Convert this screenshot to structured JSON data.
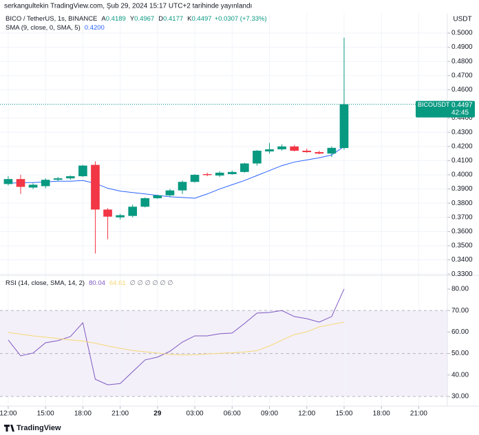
{
  "header": {
    "publisher": "serkangultekin TradingView.com, Şub 29, 2024 15:17 UTC+2 tarihinde yayınlandı"
  },
  "chart_data": [
    {
      "type": "candlestick",
      "title": "BICO / TetherUS, 1s, BINANCE",
      "legend": [
        {
          "label": "A",
          "path": "open"
        },
        {
          "label": "Y",
          "path": "high"
        },
        {
          "label": "D",
          "path": "low"
        },
        {
          "label": "K",
          "path": "close"
        }
      ],
      "change": "+0.0307 (+7.33%)",
      "y_axis_label": "USDT",
      "x": [
        0,
        1,
        2,
        3,
        4,
        5,
        6,
        7,
        8,
        9,
        10,
        11,
        12,
        13,
        14,
        15,
        16,
        17,
        18,
        19,
        20,
        21,
        22,
        23,
        24,
        25,
        26,
        27
      ],
      "xlim": [
        -0.66,
        35.3
      ],
      "xticks": [
        {
          "value": 0,
          "label": "12:00"
        },
        {
          "value": 3,
          "label": "15:00"
        },
        {
          "value": 6,
          "label": "18:00"
        },
        {
          "value": 9,
          "label": "21:00"
        },
        {
          "value": 12,
          "label": "29"
        },
        {
          "value": 15,
          "label": "03:00"
        },
        {
          "value": 18,
          "label": "06:00"
        },
        {
          "value": 21,
          "label": "09:00"
        },
        {
          "value": 24,
          "label": "12:00"
        },
        {
          "value": 27,
          "label": "15:00"
        },
        {
          "value": 30,
          "label": "18:00"
        },
        {
          "value": 33,
          "label": "21:00"
        }
      ],
      "ylim": [
        0.3291,
        0.5136
      ],
      "yticks": [
        {
          "value": 0.33,
          "label": "0.3300"
        },
        {
          "value": 0.34,
          "label": "0.3400"
        },
        {
          "value": 0.35,
          "label": "0.3500"
        },
        {
          "value": 0.36,
          "label": "0.3600"
        },
        {
          "value": 0.37,
          "label": "0.3700"
        },
        {
          "value": 0.38,
          "label": "0.3800"
        },
        {
          "value": 0.39,
          "label": "0.3900"
        },
        {
          "value": 0.4,
          "label": "0.4000"
        },
        {
          "value": 0.41,
          "label": "0.4100"
        },
        {
          "value": 0.42,
          "label": "0.4200"
        },
        {
          "value": 0.43,
          "label": "0.4300"
        },
        {
          "value": 0.44,
          "label": "0.4400"
        },
        {
          "value": 0.45,
          "label": "0.4500"
        },
        {
          "value": 0.46,
          "label": "0.4600"
        },
        {
          "value": 0.47,
          "label": "0.4700"
        },
        {
          "value": 0.48,
          "label": "0.4800"
        },
        {
          "value": 0.49,
          "label": "0.4900"
        },
        {
          "value": 0.5,
          "label": "0.5000"
        }
      ],
      "grid": true,
      "series": [
        {
          "up_color": "#089981",
          "down_color": "#f23645",
          "open": [
            0.3935,
            0.397,
            0.391,
            0.392,
            0.3965,
            0.3975,
            0.399,
            0.407,
            0.3755,
            0.37,
            0.371,
            0.3775,
            0.3835,
            0.3855,
            0.389,
            0.395,
            0.4005,
            0.3995,
            0.4005,
            0.402,
            0.408,
            0.4165,
            0.418,
            0.42,
            0.417,
            0.416,
            0.415,
            0.4189
          ],
          "high": [
            0.399,
            0.4,
            0.394,
            0.3975,
            0.3985,
            0.3995,
            0.407,
            0.4095,
            0.3765,
            0.3725,
            0.379,
            0.384,
            0.386,
            0.39,
            0.396,
            0.4005,
            0.4015,
            0.4025,
            0.403,
            0.4085,
            0.4175,
            0.4225,
            0.4215,
            0.421,
            0.4185,
            0.417,
            0.42,
            0.4967
          ],
          "low": [
            0.3925,
            0.3865,
            0.39,
            0.3905,
            0.3955,
            0.3965,
            0.3985,
            0.3445,
            0.3545,
            0.3685,
            0.37,
            0.377,
            0.383,
            0.3845,
            0.3865,
            0.3945,
            0.399,
            0.3985,
            0.4,
            0.4015,
            0.4065,
            0.415,
            0.417,
            0.4165,
            0.4155,
            0.4145,
            0.4125,
            0.4177
          ],
          "close": [
            0.397,
            0.3915,
            0.393,
            0.3965,
            0.3975,
            0.399,
            0.4065,
            0.3755,
            0.3705,
            0.3715,
            0.3775,
            0.3835,
            0.3855,
            0.389,
            0.395,
            0.4,
            0.3998,
            0.4015,
            0.402,
            0.408,
            0.417,
            0.418,
            0.42,
            0.417,
            0.416,
            0.415,
            0.419,
            0.4497
          ]
        }
      ],
      "overlays": [
        {
          "name": "SMA (9, close, 0, SMA, 5)",
          "last_label": "0.4200",
          "color": "#2962ff",
          "values": [
            0.394,
            0.3945,
            0.3945,
            0.395,
            0.3955,
            0.3955,
            0.396,
            0.394,
            0.3905,
            0.3885,
            0.3875,
            0.3865,
            0.3855,
            0.3845,
            0.384,
            0.3835,
            0.3865,
            0.39,
            0.393,
            0.396,
            0.3995,
            0.403,
            0.4065,
            0.409,
            0.4105,
            0.412,
            0.414,
            0.42
          ]
        }
      ],
      "last_price": {
        "label": "BICOUSDT",
        "countdown": "42:45",
        "color": "#089981"
      }
    },
    {
      "type": "line",
      "title": "RSI (14, close, SMA, 14, 2)",
      "extra": "∅ ∅ ∅ ∅ ∅ ∅",
      "x": [
        0,
        1,
        2,
        3,
        4,
        5,
        6,
        7,
        8,
        9,
        10,
        11,
        12,
        13,
        14,
        15,
        16,
        17,
        18,
        19,
        20,
        21,
        22,
        23,
        24,
        25,
        26,
        27
      ],
      "xlim": [
        -0.66,
        35.3
      ],
      "ylim": [
        25.5,
        86.4
      ],
      "yticks": [
        {
          "value": 30,
          "label": "30.00"
        },
        {
          "value": 40,
          "label": "40.00"
        },
        {
          "value": 50,
          "label": "50.00"
        },
        {
          "value": 60,
          "label": "60.00"
        },
        {
          "value": 70,
          "label": "70.00"
        },
        {
          "value": 80,
          "label": "80.00"
        }
      ],
      "bands": [
        70,
        50,
        30
      ],
      "band_color": "#7e57c2",
      "series": [
        {
          "color": "#7e57c2",
          "values": [
            56.3,
            48.9,
            50.2,
            55.0,
            56.0,
            57.9,
            64.3,
            38.0,
            35.4,
            36.0,
            41.5,
            47.0,
            48.3,
            51.0,
            55.3,
            58.2,
            58.2,
            59.2,
            59.5,
            64.0,
            68.8,
            69.1,
            70.0,
            67.2,
            66.2,
            64.6,
            67.2,
            80.04
          ]
        },
        {
          "color": "#f7d774",
          "values": [
            59.8,
            59.0,
            58.2,
            57.6,
            57.0,
            56.3,
            55.8,
            54.8,
            53.5,
            52.4,
            51.4,
            50.8,
            50.2,
            49.6,
            49.3,
            49.4,
            49.8,
            50.1,
            50.3,
            50.7,
            51.3,
            53.5,
            56.2,
            58.8,
            60.1,
            62.4,
            63.5,
            64.61
          ]
        }
      ]
    }
  ],
  "footer": {
    "brand": "TradingView"
  }
}
